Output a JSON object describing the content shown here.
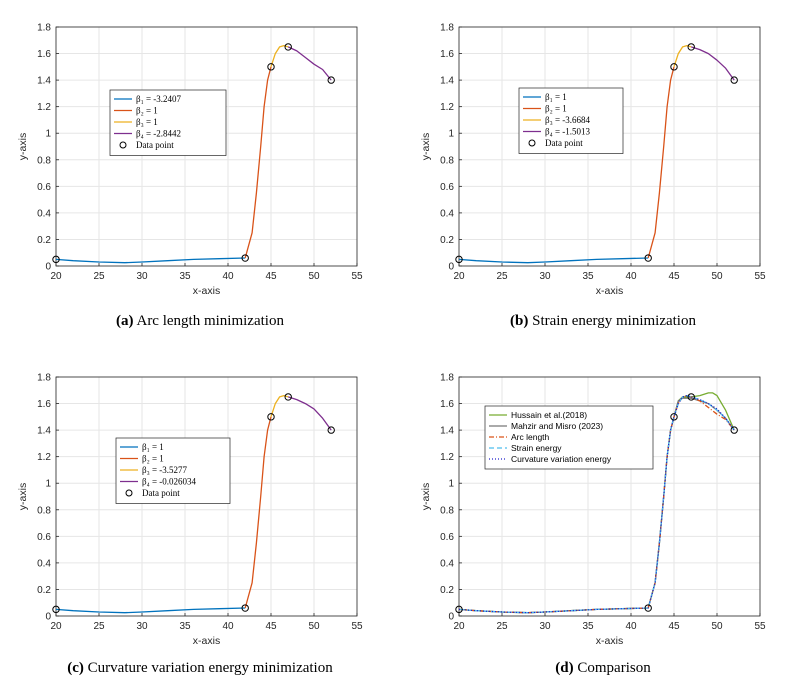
{
  "chart_data": [
    {
      "type": "line",
      "caption_label": "(a)",
      "caption_text": "Arc length minimization",
      "xlabel": "x-axis",
      "ylabel": "y-axis",
      "xlim": [
        20,
        55
      ],
      "ylim": [
        0,
        1.8
      ],
      "xticks": [
        "20",
        "25",
        "30",
        "35",
        "40",
        "45",
        "50",
        "55"
      ],
      "yticks": [
        "0",
        "0.2",
        "0.4",
        "0.6",
        "0.8",
        "1",
        "1.2",
        "1.4",
        "1.6",
        "1.8"
      ],
      "grid": true,
      "legend_placement": "upper-left",
      "series": [
        {
          "name": "β₁ = -3.2407",
          "color": "#0072BD",
          "x": [
            20,
            22,
            25,
            28,
            30,
            33,
            36,
            39,
            42
          ],
          "y": [
            0.05,
            0.04,
            0.03,
            0.025,
            0.03,
            0.04,
            0.05,
            0.055,
            0.06
          ]
        },
        {
          "name": "β₂ = 1",
          "color": "#D95319",
          "x": [
            42,
            42.8,
            43.3,
            43.8,
            44.2,
            44.6,
            45
          ],
          "y": [
            0.06,
            0.25,
            0.55,
            0.9,
            1.2,
            1.4,
            1.5
          ]
        },
        {
          "name": "β₃ = 1",
          "color": "#EDB120",
          "x": [
            45,
            45.5,
            46,
            46.5,
            47
          ],
          "y": [
            1.5,
            1.6,
            1.65,
            1.66,
            1.65
          ]
        },
        {
          "name": "β₄ = -2.8442",
          "color": "#7E2F8E",
          "x": [
            47,
            48,
            49,
            50,
            51,
            52
          ],
          "y": [
            1.65,
            1.62,
            1.57,
            1.52,
            1.48,
            1.4
          ]
        }
      ],
      "data_points": {
        "name": "Data point",
        "x": [
          20,
          42,
          45,
          47,
          52
        ],
        "y": [
          0.05,
          0.06,
          1.5,
          1.65,
          1.4
        ]
      }
    },
    {
      "type": "line",
      "caption_label": "(b)",
      "caption_text": "Strain energy minimization",
      "xlabel": "x-axis",
      "ylabel": "y-axis",
      "xlim": [
        20,
        55
      ],
      "ylim": [
        0,
        1.8
      ],
      "xticks": [
        "20",
        "25",
        "30",
        "35",
        "40",
        "45",
        "50",
        "55"
      ],
      "yticks": [
        "0",
        "0.2",
        "0.4",
        "0.6",
        "0.8",
        "1",
        "1.2",
        "1.4",
        "1.6",
        "1.8"
      ],
      "grid": true,
      "legend_placement": "upper-left",
      "series": [
        {
          "name": "β₁ = 1",
          "color": "#0072BD",
          "x": [
            20,
            22,
            25,
            28,
            30,
            33,
            36,
            39,
            42
          ],
          "y": [
            0.05,
            0.04,
            0.03,
            0.025,
            0.03,
            0.04,
            0.05,
            0.055,
            0.06
          ]
        },
        {
          "name": "β₂ = 1",
          "color": "#D95319",
          "x": [
            42,
            42.8,
            43.3,
            43.8,
            44.2,
            44.6,
            45
          ],
          "y": [
            0.06,
            0.25,
            0.55,
            0.9,
            1.2,
            1.4,
            1.5
          ]
        },
        {
          "name": "β₃ = -3.6684",
          "color": "#EDB120",
          "x": [
            45,
            45.5,
            46,
            46.5,
            47
          ],
          "y": [
            1.5,
            1.6,
            1.65,
            1.66,
            1.65
          ]
        },
        {
          "name": "β₄ = -1.5013",
          "color": "#7E2F8E",
          "x": [
            47,
            48,
            49,
            50,
            51,
            52
          ],
          "y": [
            1.65,
            1.63,
            1.6,
            1.55,
            1.49,
            1.4
          ]
        }
      ],
      "data_points": {
        "name": "Data point",
        "x": [
          20,
          42,
          45,
          47,
          52
        ],
        "y": [
          0.05,
          0.06,
          1.5,
          1.65,
          1.4
        ]
      }
    },
    {
      "type": "line",
      "caption_label": "(c)",
      "caption_text": "Curvature variation energy minimization",
      "xlabel": "x-axis",
      "ylabel": "y-axis",
      "xlim": [
        20,
        55
      ],
      "ylim": [
        0,
        1.8
      ],
      "xticks": [
        "20",
        "25",
        "30",
        "35",
        "40",
        "45",
        "50",
        "55"
      ],
      "yticks": [
        "0",
        "0.2",
        "0.4",
        "0.6",
        "0.8",
        "1",
        "1.2",
        "1.4",
        "1.6",
        "1.8"
      ],
      "grid": true,
      "legend_placement": "upper-left",
      "series": [
        {
          "name": "β₁ = 1",
          "color": "#0072BD",
          "x": [
            20,
            22,
            25,
            28,
            30,
            33,
            36,
            39,
            42
          ],
          "y": [
            0.05,
            0.04,
            0.03,
            0.025,
            0.03,
            0.04,
            0.05,
            0.055,
            0.06
          ]
        },
        {
          "name": "β₂ = 1",
          "color": "#D95319",
          "x": [
            42,
            42.8,
            43.3,
            43.8,
            44.2,
            44.6,
            45
          ],
          "y": [
            0.06,
            0.25,
            0.55,
            0.9,
            1.2,
            1.4,
            1.5
          ]
        },
        {
          "name": "β₃ = -3.5277",
          "color": "#EDB120",
          "x": [
            45,
            45.5,
            46,
            46.5,
            47
          ],
          "y": [
            1.5,
            1.6,
            1.65,
            1.66,
            1.65
          ]
        },
        {
          "name": "β₄ = -0.026034",
          "color": "#7E2F8E",
          "x": [
            47,
            48,
            49,
            50,
            51,
            52
          ],
          "y": [
            1.65,
            1.63,
            1.6,
            1.56,
            1.49,
            1.4
          ]
        }
      ],
      "data_points": {
        "name": "Data point",
        "x": [
          20,
          42,
          45,
          47,
          52
        ],
        "y": [
          0.05,
          0.06,
          1.5,
          1.65,
          1.4
        ]
      }
    },
    {
      "type": "line",
      "caption_label": "(d)",
      "caption_text": "Comparison",
      "xlabel": "x-axis",
      "ylabel": "y-axis",
      "xlim": [
        20,
        55
      ],
      "ylim": [
        0,
        1.8
      ],
      "xticks": [
        "20",
        "25",
        "30",
        "35",
        "40",
        "45",
        "50",
        "55"
      ],
      "yticks": [
        "0",
        "0.2",
        "0.4",
        "0.6",
        "0.8",
        "1",
        "1.2",
        "1.4",
        "1.6",
        "1.8"
      ],
      "grid": true,
      "legend_placement": "upper-left",
      "series": [
        {
          "name": "Hussain et al.(2018)",
          "color": "#77AC30",
          "dash": "",
          "x": [
            20,
            22,
            25,
            28,
            30,
            33,
            36,
            39,
            42,
            42.8,
            43.3,
            43.8,
            44.2,
            44.6,
            45,
            45.5,
            46,
            46.5,
            47,
            48,
            49,
            49.5,
            50,
            51,
            52
          ],
          "y": [
            0.05,
            0.04,
            0.03,
            0.025,
            0.03,
            0.04,
            0.05,
            0.055,
            0.06,
            0.25,
            0.55,
            0.9,
            1.2,
            1.4,
            1.5,
            1.62,
            1.65,
            1.65,
            1.65,
            1.66,
            1.68,
            1.68,
            1.66,
            1.55,
            1.4
          ]
        },
        {
          "name": "Mahzir and Misro (2023)",
          "color": "#777777",
          "dash": "",
          "x": [
            20,
            22,
            25,
            28,
            30,
            33,
            36,
            39,
            42,
            42.8,
            43.3,
            43.8,
            44.2,
            44.6,
            45,
            45.5,
            46,
            46.5,
            47,
            48,
            49,
            50,
            51,
            52
          ],
          "y": [
            0.05,
            0.04,
            0.03,
            0.025,
            0.03,
            0.04,
            0.05,
            0.055,
            0.06,
            0.25,
            0.55,
            0.9,
            1.2,
            1.4,
            1.5,
            1.62,
            1.64,
            1.64,
            1.64,
            1.62,
            1.6,
            1.55,
            1.49,
            1.4
          ]
        },
        {
          "name": "Arc length",
          "color": "#D95319",
          "dash": "5,2,1,2",
          "x": [
            20,
            22,
            25,
            28,
            30,
            33,
            36,
            39,
            42,
            42.8,
            43.3,
            43.8,
            44.2,
            44.6,
            45,
            45.5,
            46,
            46.5,
            47,
            48,
            49,
            50,
            51,
            52
          ],
          "y": [
            0.05,
            0.04,
            0.03,
            0.025,
            0.03,
            0.04,
            0.05,
            0.055,
            0.06,
            0.25,
            0.55,
            0.9,
            1.2,
            1.4,
            1.5,
            1.6,
            1.65,
            1.66,
            1.65,
            1.62,
            1.57,
            1.52,
            1.48,
            1.4
          ]
        },
        {
          "name": "Strain energy",
          "color": "#4DBEEE",
          "dash": "5,3",
          "x": [
            20,
            22,
            25,
            28,
            30,
            33,
            36,
            39,
            42,
            42.8,
            43.3,
            43.8,
            44.2,
            44.6,
            45,
            45.5,
            46,
            46.5,
            47,
            48,
            49,
            50,
            51,
            52
          ],
          "y": [
            0.05,
            0.04,
            0.03,
            0.025,
            0.03,
            0.04,
            0.05,
            0.055,
            0.06,
            0.25,
            0.55,
            0.9,
            1.2,
            1.4,
            1.5,
            1.6,
            1.65,
            1.66,
            1.65,
            1.63,
            1.6,
            1.55,
            1.49,
            1.4
          ]
        },
        {
          "name": "Curvature variation energy",
          "color": "#2020CC",
          "dash": "1,2",
          "x": [
            20,
            22,
            25,
            28,
            30,
            33,
            36,
            39,
            42,
            42.8,
            43.3,
            43.8,
            44.2,
            44.6,
            45,
            45.5,
            46,
            46.5,
            47,
            48,
            49,
            50,
            51,
            52
          ],
          "y": [
            0.05,
            0.04,
            0.03,
            0.025,
            0.03,
            0.04,
            0.05,
            0.055,
            0.06,
            0.25,
            0.55,
            0.9,
            1.2,
            1.4,
            1.5,
            1.6,
            1.65,
            1.66,
            1.65,
            1.63,
            1.6,
            1.56,
            1.49,
            1.4
          ]
        }
      ],
      "data_points": {
        "name": "",
        "x": [
          20,
          42,
          45,
          47,
          52
        ],
        "y": [
          0.05,
          0.06,
          1.5,
          1.65,
          1.4
        ]
      }
    }
  ]
}
